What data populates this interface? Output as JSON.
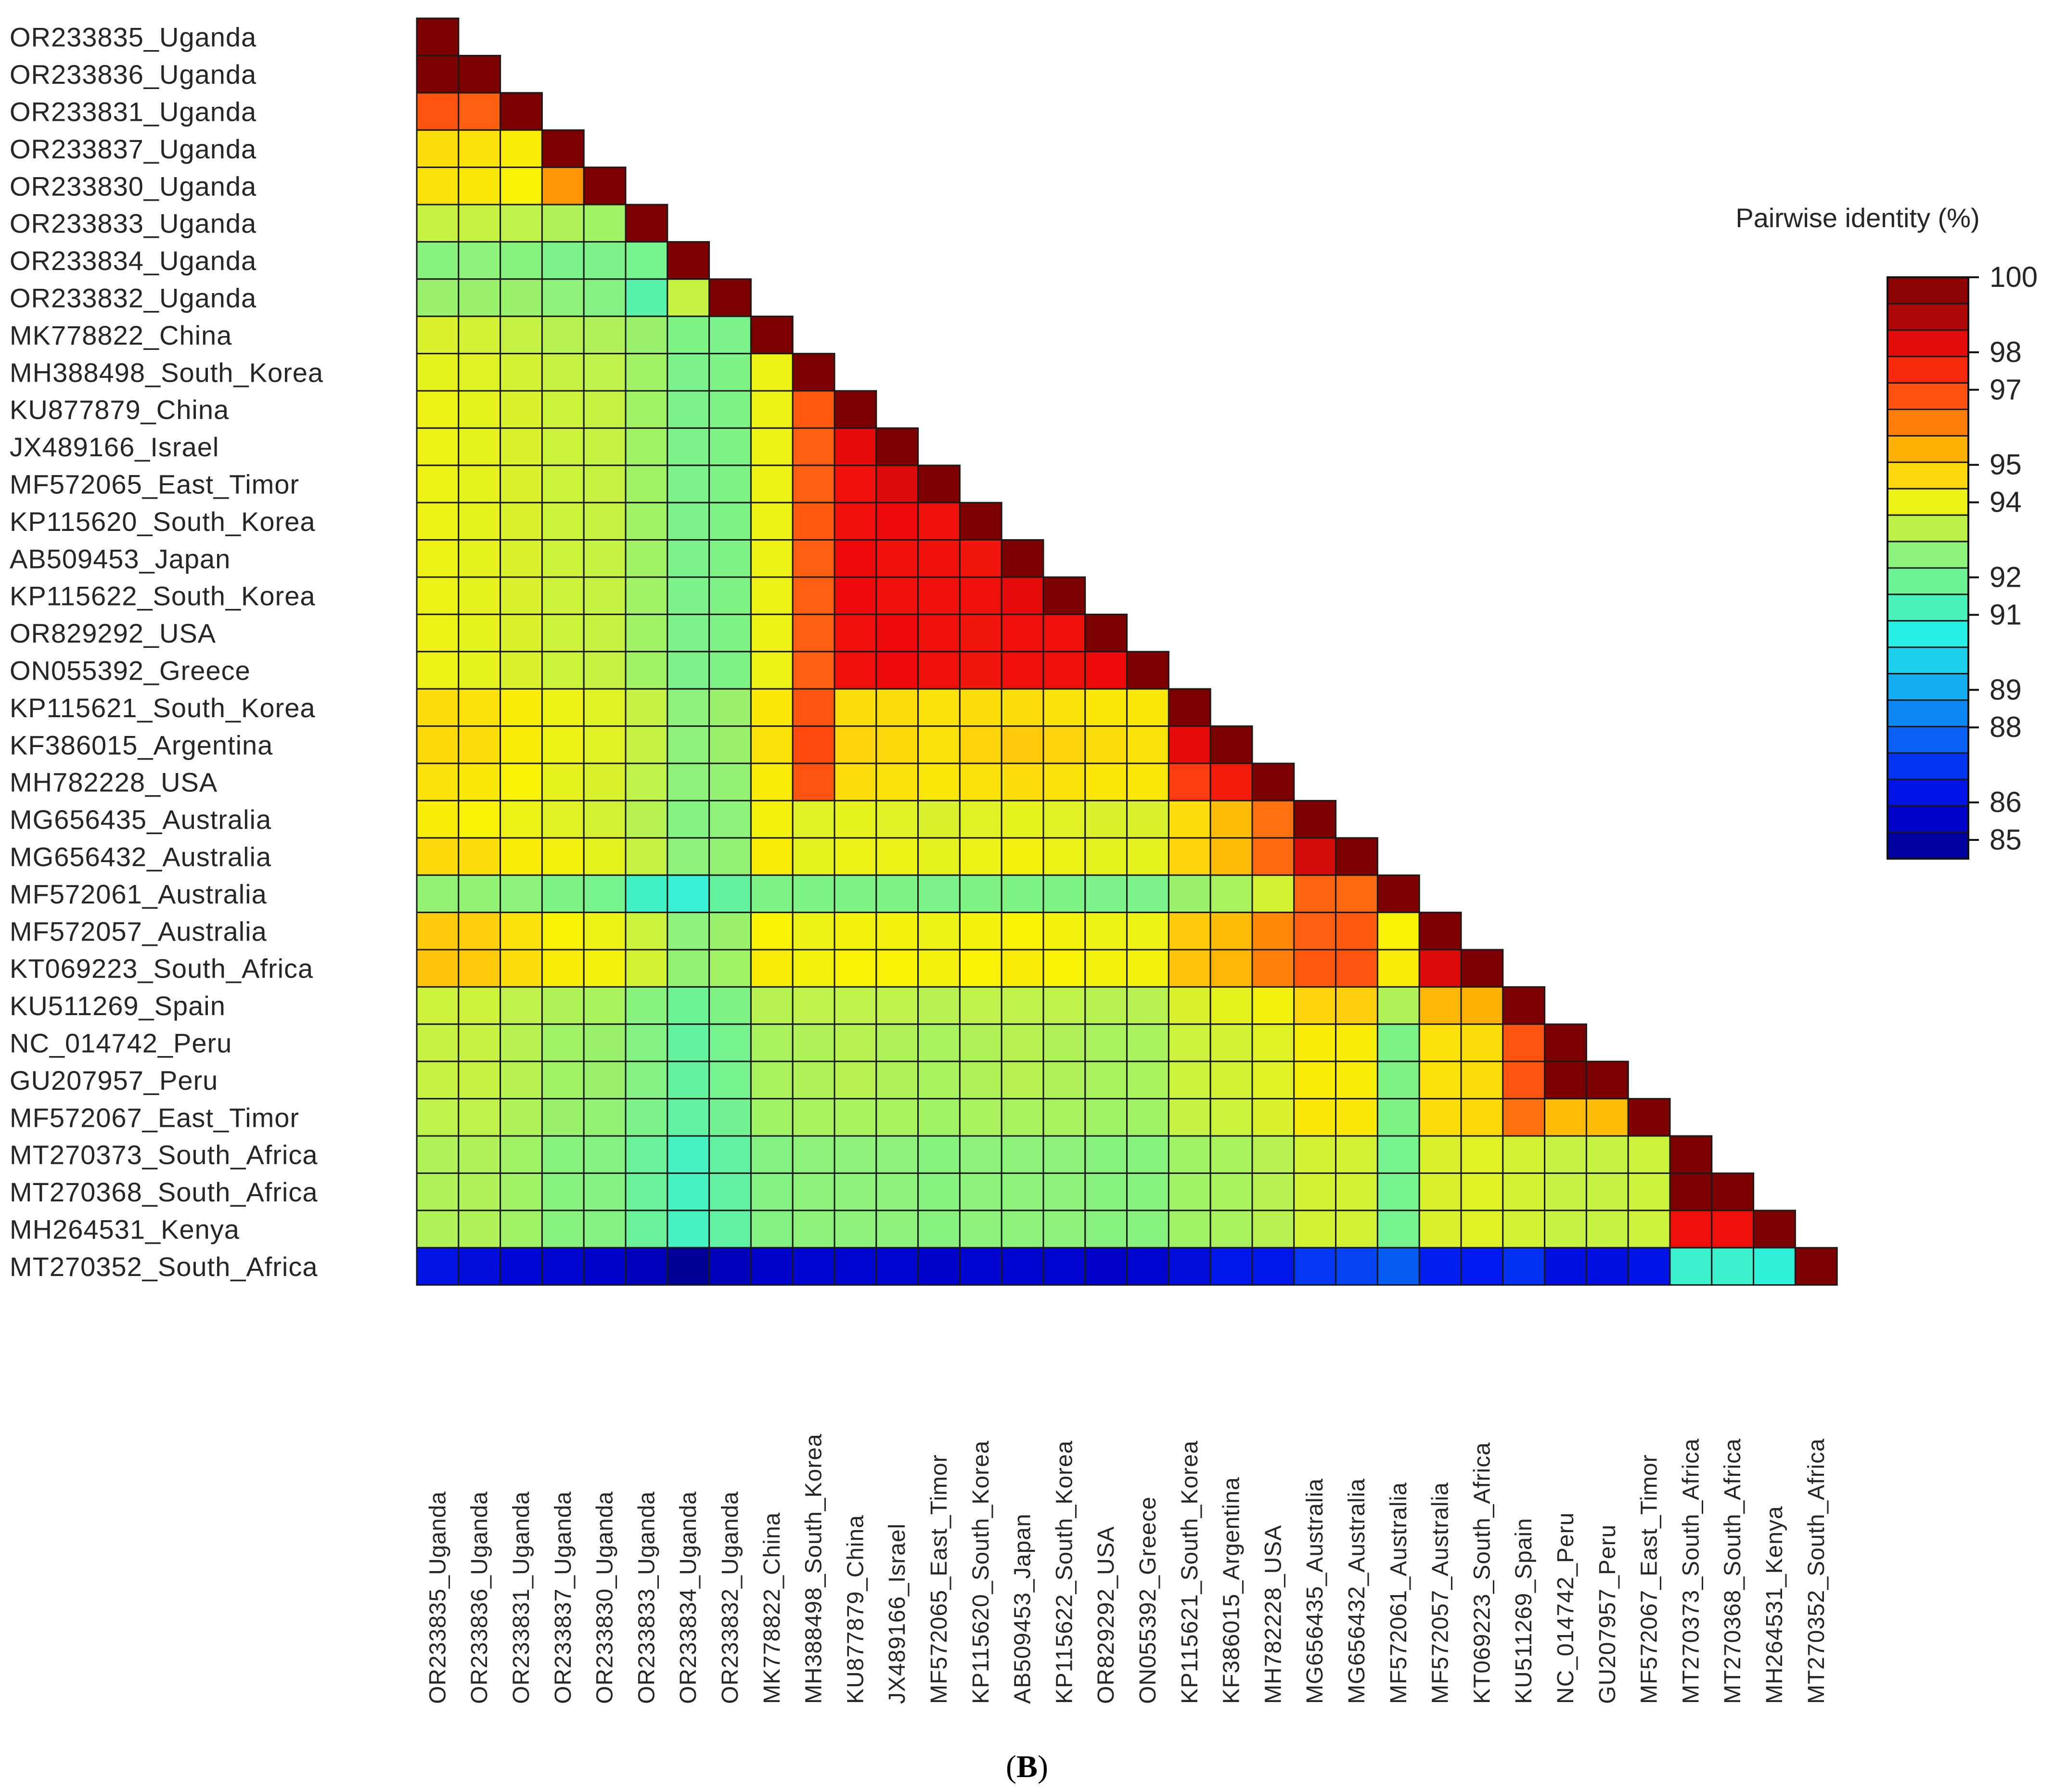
{
  "chart_data": {
    "type": "heatmap",
    "title": "",
    "panel_label_open": "(",
    "panel_label_letter": "B",
    "panel_label_close": ")",
    "colorbar_title": "Pairwise identity (%)",
    "colorbar_ticks": [
      100,
      98,
      97,
      95,
      94,
      92,
      91,
      89,
      88,
      86,
      85
    ],
    "value_range": [
      84.5,
      100
    ],
    "labels": [
      "OR233835_Uganda",
      "OR233836_Uganda",
      "OR233831_Uganda",
      "OR233837_Uganda",
      "OR233830_Uganda",
      "OR233833_Uganda",
      "OR233834_Uganda",
      "OR233832_Uganda",
      "MK778822_China",
      "MH388498_South_Korea",
      "KU877879_China",
      "JX489166_Israel",
      "MF572065_East_Timor",
      "KP115620_South_Korea",
      "AB509453_Japan",
      "KP115622_South_Korea",
      "OR829292_USA",
      "ON055392_Greece",
      "KP115621_South_Korea",
      "KF386015_Argentina",
      "MH782228_USA",
      "MG656435_Australia",
      "MG656432_Australia",
      "MF572061_Australia",
      "MF572057_Australia",
      "KT069223_South_Africa",
      "KU511269_Spain",
      "NC_014742_Peru",
      "GU207957_Peru",
      "MF572067_East_Timor",
      "MT270373_South_Africa",
      "MT270368_South_Africa",
      "MH264531_Kenya",
      "MT270352_South_Africa"
    ],
    "matrix_lower": [
      [
        100
      ],
      [
        100,
        100
      ],
      [
        96.8,
        96.6,
        100
      ],
      [
        94.6,
        94.5,
        94.3,
        100
      ],
      [
        94.5,
        94.4,
        94.2,
        95.8,
        100
      ],
      [
        93.4,
        93.4,
        93.3,
        93.1,
        92.9,
        100
      ],
      [
        92.5,
        92.6,
        92.5,
        92.2,
        92.2,
        92.1,
        100
      ],
      [
        92.8,
        92.8,
        92.8,
        92.6,
        92.4,
        91.4,
        93.4,
        100
      ],
      [
        93.7,
        93.6,
        93.4,
        93.2,
        93.1,
        92.8,
        92.3,
        92.2,
        100
      ],
      [
        93.9,
        93.8,
        93.6,
        93.4,
        93.3,
        92.9,
        92.2,
        92.3,
        94.0,
        100
      ],
      [
        94.0,
        93.9,
        93.7,
        93.5,
        93.4,
        92.9,
        92.2,
        92.3,
        94.0,
        96.7,
        100
      ],
      [
        94.0,
        93.9,
        93.7,
        93.5,
        93.4,
        92.9,
        92.2,
        92.3,
        94.0,
        96.6,
        98.2,
        100
      ],
      [
        94.0,
        93.9,
        93.7,
        93.5,
        93.4,
        92.9,
        92.2,
        92.3,
        94.0,
        96.6,
        98.0,
        98.3,
        100
      ],
      [
        94.0,
        93.9,
        93.7,
        93.5,
        93.4,
        92.9,
        92.2,
        92.3,
        94.0,
        96.7,
        98.0,
        98.1,
        98.0,
        100
      ],
      [
        94.0,
        93.9,
        93.7,
        93.5,
        93.4,
        92.9,
        92.2,
        92.3,
        94.0,
        96.6,
        98.1,
        98.0,
        98.0,
        97.9,
        100
      ],
      [
        94.0,
        93.9,
        93.7,
        93.5,
        93.4,
        92.9,
        92.2,
        92.3,
        94.0,
        96.6,
        98.1,
        98.0,
        98.0,
        98.0,
        98.2,
        100
      ],
      [
        94.0,
        93.9,
        93.7,
        93.5,
        93.4,
        92.9,
        92.2,
        92.3,
        94.0,
        96.6,
        98.0,
        98.1,
        98.0,
        97.9,
        98.0,
        98.0,
        100
      ],
      [
        94.0,
        93.9,
        93.7,
        93.5,
        93.4,
        92.9,
        92.2,
        92.3,
        94.0,
        96.6,
        98.0,
        98.1,
        98.0,
        97.9,
        98.0,
        98.0,
        98.1,
        100
      ],
      [
        94.6,
        94.5,
        94.3,
        94.0,
        93.8,
        93.4,
        92.6,
        92.8,
        94.4,
        96.8,
        94.6,
        94.6,
        94.5,
        94.6,
        94.6,
        94.5,
        94.4,
        94.4,
        100
      ],
      [
        94.7,
        94.6,
        94.3,
        94.0,
        93.8,
        93.4,
        92.6,
        92.8,
        94.5,
        97.0,
        94.8,
        94.7,
        94.5,
        94.8,
        95.0,
        94.8,
        94.6,
        94.5,
        98.2,
        100
      ],
      [
        94.5,
        94.4,
        94.2,
        93.9,
        93.7,
        93.3,
        92.6,
        92.7,
        94.3,
        96.8,
        94.6,
        94.5,
        94.4,
        94.5,
        94.6,
        94.5,
        94.4,
        94.4,
        97.2,
        97.8,
        100
      ],
      [
        94.3,
        94.2,
        94.0,
        93.8,
        93.6,
        93.2,
        92.4,
        92.6,
        94.1,
        93.8,
        93.9,
        93.8,
        93.7,
        93.8,
        93.9,
        93.8,
        93.7,
        93.7,
        94.6,
        95.2,
        96.3,
        100
      ],
      [
        94.7,
        94.6,
        94.3,
        94.1,
        93.9,
        93.4,
        92.6,
        92.7,
        94.3,
        93.9,
        94.0,
        94.0,
        93.9,
        94.0,
        94.1,
        94.0,
        93.9,
        93.9,
        94.8,
        95.2,
        96.4,
        98.4,
        100
      ],
      [
        92.7,
        92.7,
        92.6,
        92.3,
        92.1,
        91.0,
        90.8,
        91.7,
        92.3,
        92.3,
        92.3,
        92.3,
        92.2,
        92.3,
        92.3,
        92.3,
        92.2,
        92.2,
        92.8,
        93.0,
        93.6,
        96.5,
        96.4,
        100
      ],
      [
        95.0,
        94.9,
        94.5,
        94.2,
        94.0,
        93.5,
        92.6,
        92.8,
        94.2,
        94.0,
        94.1,
        94.1,
        94.0,
        94.1,
        94.2,
        94.1,
        94.0,
        94.0,
        95.0,
        95.2,
        96.0,
        96.6,
        96.7,
        94.2,
        100
      ],
      [
        95.1,
        95.0,
        94.6,
        94.3,
        94.1,
        93.6,
        92.7,
        92.9,
        94.3,
        94.1,
        94.2,
        94.2,
        94.1,
        94.2,
        94.3,
        94.2,
        94.1,
        94.1,
        95.1,
        95.3,
        96.1,
        96.7,
        96.8,
        94.3,
        98.3,
        100
      ],
      [
        93.5,
        93.5,
        93.3,
        93.1,
        93.0,
        92.5,
        91.9,
        92.3,
        93.2,
        93.3,
        93.3,
        93.3,
        93.2,
        93.3,
        93.3,
        93.3,
        93.2,
        93.2,
        93.7,
        93.9,
        94.1,
        94.8,
        94.9,
        93.1,
        95.3,
        95.4,
        100
      ],
      [
        93.4,
        93.4,
        93.2,
        92.9,
        92.8,
        92.4,
        91.7,
        92.1,
        93.0,
        93.1,
        93.2,
        93.1,
        93.0,
        93.1,
        93.2,
        93.1,
        93.0,
        93.0,
        93.5,
        93.6,
        93.8,
        94.3,
        94.3,
        92.3,
        94.5,
        94.6,
        96.8,
        100
      ],
      [
        93.4,
        93.4,
        93.2,
        92.9,
        92.8,
        92.4,
        91.7,
        92.1,
        93.0,
        93.1,
        93.2,
        93.1,
        93.0,
        93.1,
        93.2,
        93.1,
        93.0,
        93.0,
        93.5,
        93.6,
        93.8,
        94.3,
        94.3,
        92.3,
        94.5,
        94.6,
        96.8,
        100,
        100
      ],
      [
        93.3,
        93.3,
        93.1,
        92.8,
        92.7,
        92.2,
        91.6,
        92.0,
        92.9,
        93.0,
        93.0,
        93.0,
        92.9,
        93.0,
        93.0,
        93.0,
        92.9,
        92.9,
        93.4,
        93.5,
        93.7,
        94.4,
        94.4,
        92.3,
        94.6,
        94.7,
        96.3,
        95.2,
        95.2,
        100
      ],
      [
        93.1,
        93.1,
        92.9,
        92.5,
        92.4,
        91.8,
        91.1,
        91.6,
        92.4,
        92.6,
        92.6,
        92.6,
        92.5,
        92.6,
        92.6,
        92.6,
        92.5,
        92.5,
        92.9,
        93.0,
        93.2,
        93.6,
        93.6,
        92.1,
        93.7,
        93.8,
        93.6,
        93.4,
        93.4,
        93.5,
        100
      ],
      [
        93.1,
        93.1,
        92.9,
        92.5,
        92.4,
        91.8,
        91.1,
        91.6,
        92.4,
        92.6,
        92.6,
        92.6,
        92.5,
        92.6,
        92.6,
        92.6,
        92.5,
        92.5,
        92.9,
        93.0,
        93.2,
        93.6,
        93.6,
        92.1,
        93.7,
        93.8,
        93.6,
        93.4,
        93.4,
        93.5,
        100,
        100
      ],
      [
        93.1,
        93.1,
        92.9,
        92.5,
        92.4,
        91.8,
        91.1,
        91.6,
        92.4,
        92.6,
        92.6,
        92.6,
        92.5,
        92.6,
        92.6,
        92.6,
        92.5,
        92.5,
        92.9,
        93.0,
        93.2,
        93.6,
        93.6,
        92.1,
        93.7,
        93.8,
        93.6,
        93.4,
        93.4,
        93.5,
        98.0,
        98.0,
        100
      ],
      [
        86.2,
        86.0,
        85.8,
        85.7,
        85.6,
        85.3,
        84.7,
        85.3,
        85.6,
        85.7,
        85.7,
        85.7,
        85.6,
        85.7,
        85.7,
        85.7,
        85.5,
        85.7,
        86.0,
        86.4,
        86.4,
        87.0,
        87.2,
        87.6,
        86.6,
        86.5,
        86.9,
        86.1,
        86.1,
        86.3,
        90.9,
        90.9,
        90.7,
        100
      ]
    ]
  }
}
